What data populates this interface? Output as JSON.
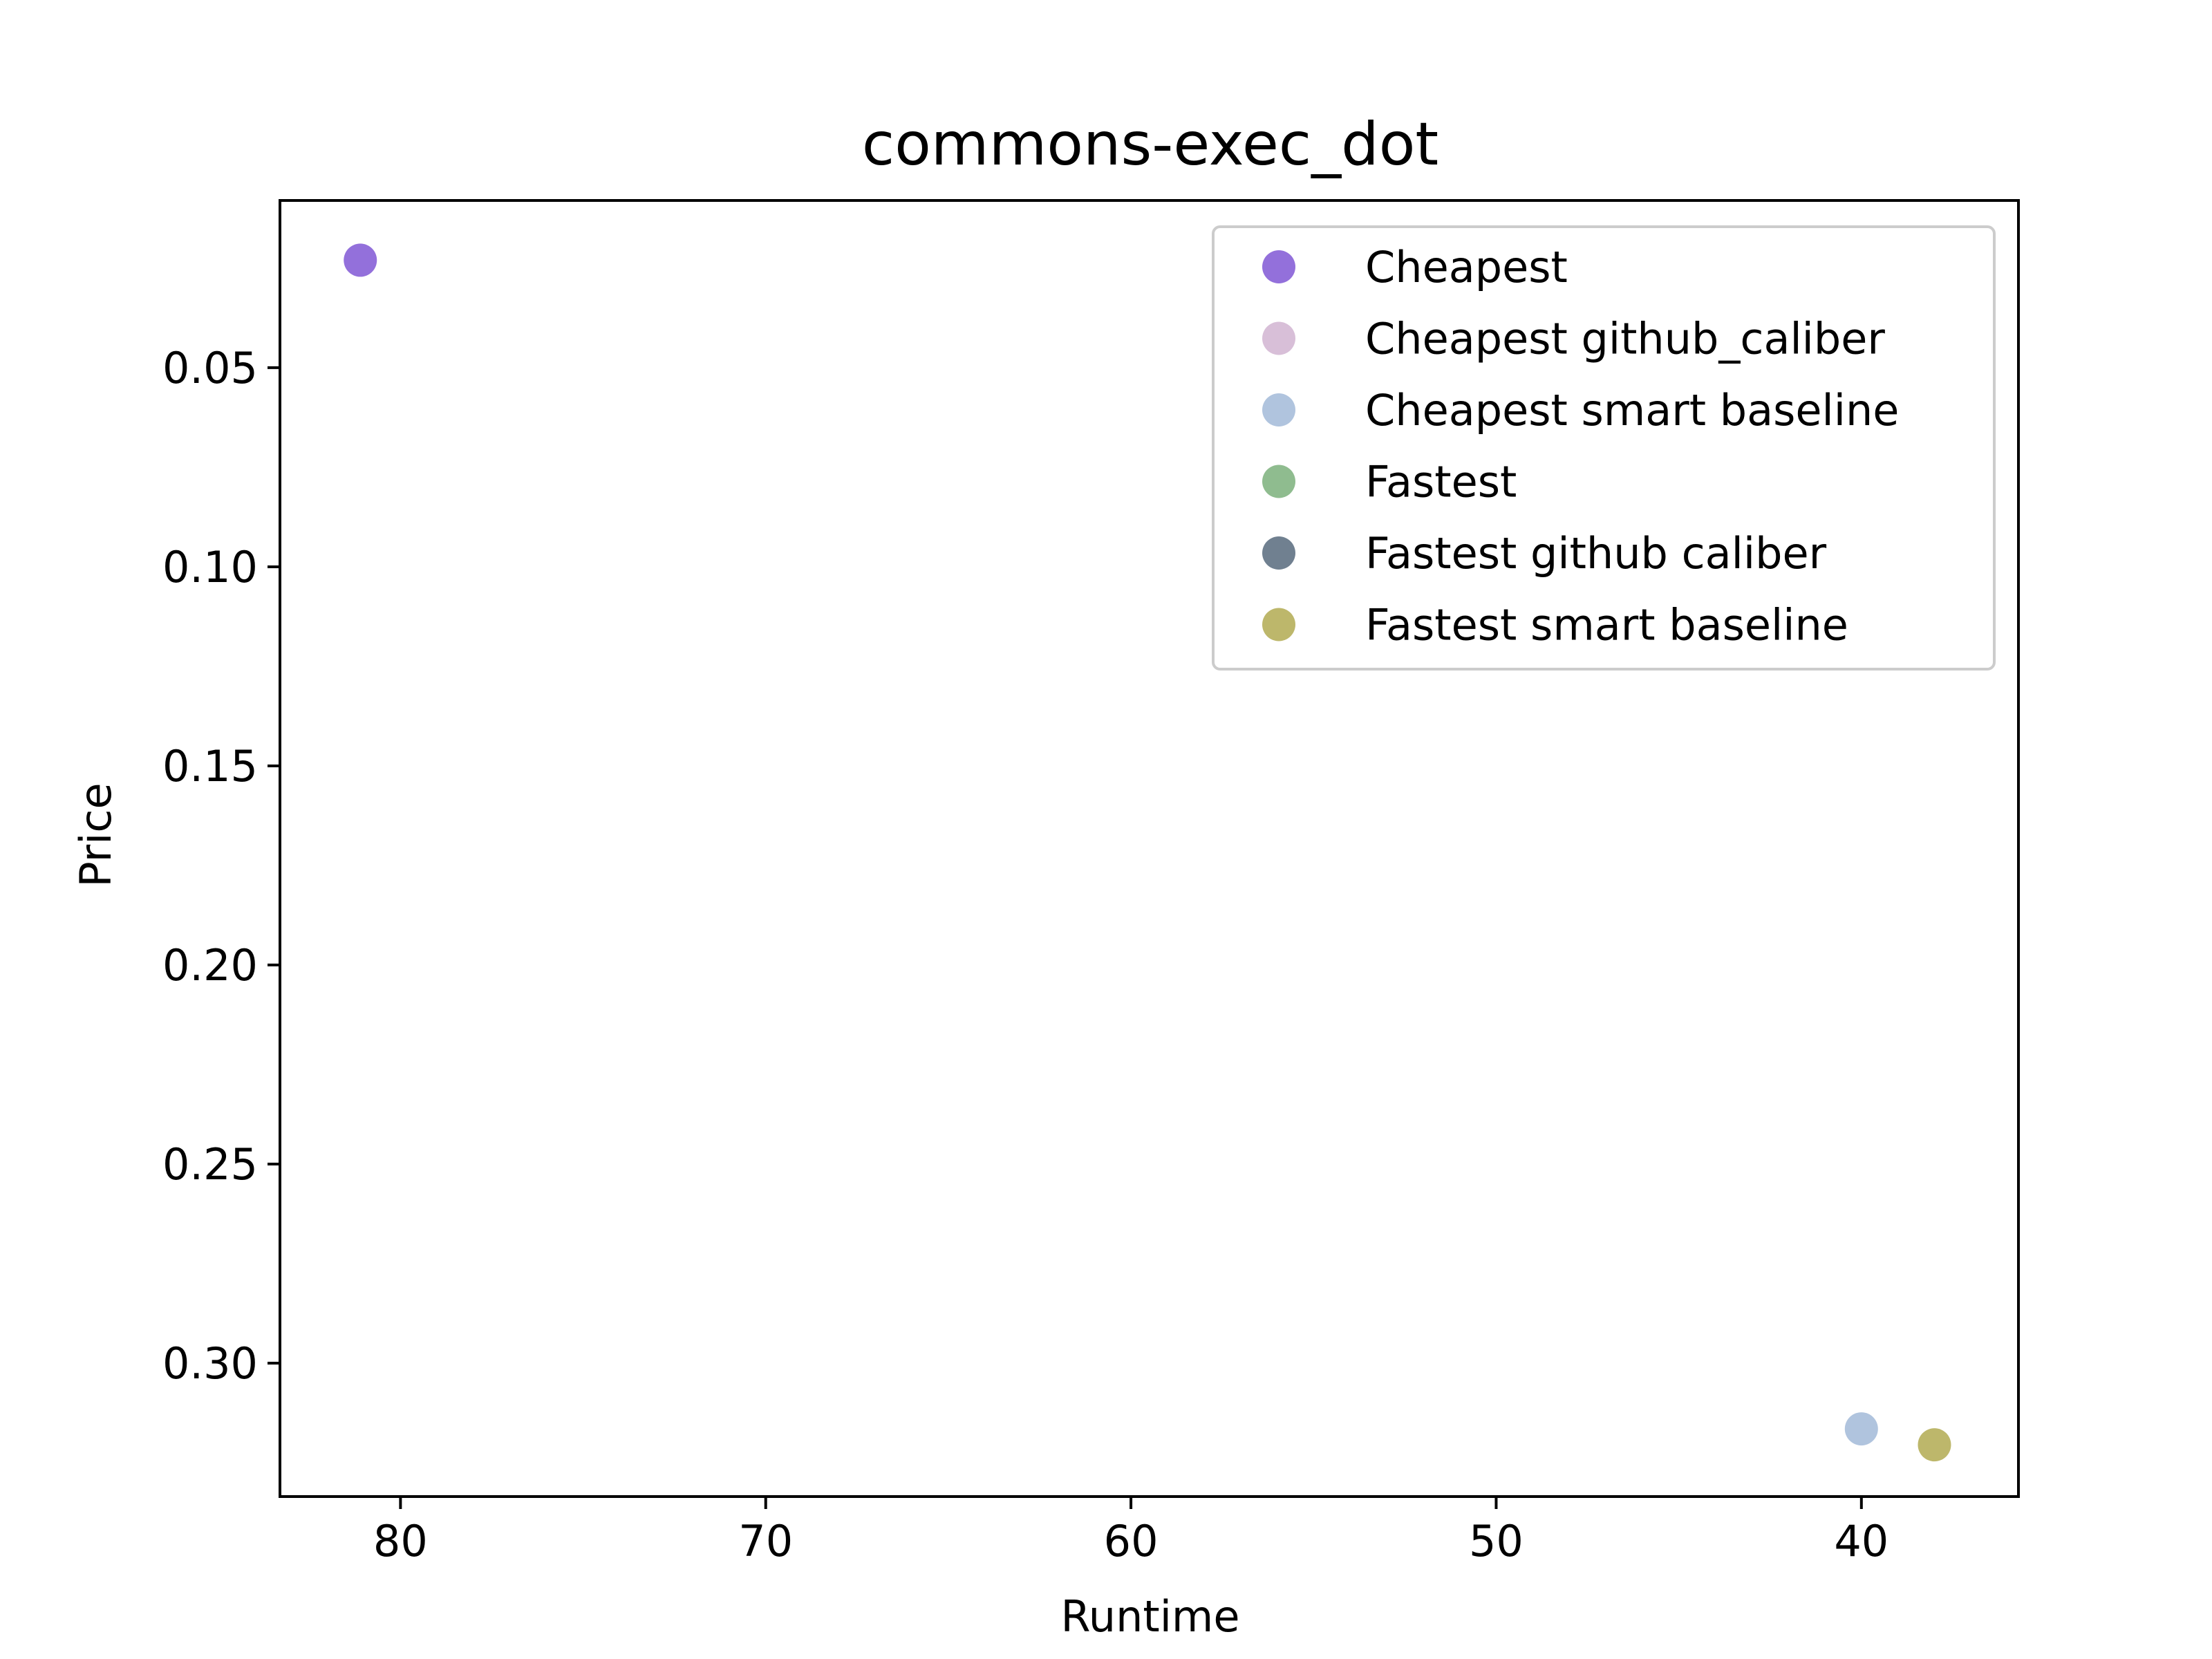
{
  "chart_data": {
    "type": "scatter",
    "title": "commons-exec_dot",
    "xlabel": "Runtime",
    "ylabel": "Price",
    "xlim": [
      83.3,
      35.7
    ],
    "ylim": [
      0.008,
      0.3335
    ],
    "x_inverted": true,
    "y_inverted": true,
    "xticks": [
      80,
      70,
      60,
      50,
      40
    ],
    "yticks": [
      0.05,
      0.1,
      0.15,
      0.2,
      0.25,
      0.3
    ],
    "ytick_labels": [
      "0.05",
      "0.10",
      "0.15",
      "0.20",
      "0.25",
      "0.30"
    ],
    "grid": false,
    "legend_position": "top-right",
    "series": [
      {
        "name": "Cheapest",
        "color": "#9370db",
        "points": [
          {
            "x": 81.1,
            "y": 0.023
          }
        ]
      },
      {
        "name": "Cheapest github_caliber",
        "color": "#d8bfd8",
        "points": []
      },
      {
        "name": "Cheapest smart baseline",
        "color": "#b0c4de",
        "points": [
          {
            "x": 40.0,
            "y": 0.3165
          }
        ]
      },
      {
        "name": "Fastest",
        "color": "#8fbc8f",
        "points": []
      },
      {
        "name": "Fastest github caliber",
        "color": "#708090",
        "points": []
      },
      {
        "name": "Fastest smart baseline",
        "color": "#bdb76b",
        "points": [
          {
            "x": 38.0,
            "y": 0.3205
          }
        ]
      }
    ]
  }
}
